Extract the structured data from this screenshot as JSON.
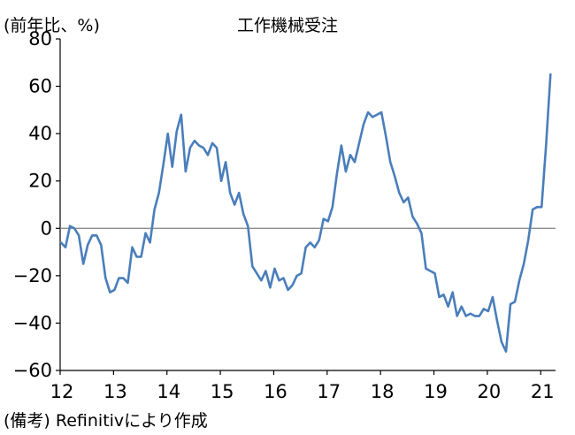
{
  "chart_data": {
    "type": "line",
    "title": "工作機械受注",
    "unit_label": "(前年比、%)",
    "source": "(備考) Refinitivにより作成",
    "ylim": [
      -60,
      80
    ],
    "yticks": [
      80,
      60,
      40,
      20,
      0,
      -20,
      -40,
      -60
    ],
    "ytick_labels": [
      "80",
      "60",
      "40",
      "20",
      "0",
      "−20",
      "−40",
      "−60"
    ],
    "xtick_labels": [
      "12",
      "13",
      "14",
      "15",
      "16",
      "17",
      "18",
      "19",
      "20",
      "21"
    ],
    "x_start": "2012-01",
    "x_end": "2021-03",
    "grid": false,
    "zero_line": true,
    "line_color": "#4a7ebb",
    "series": [
      {
        "values": [
          -6,
          -8,
          1,
          0,
          -3,
          -15,
          -7,
          -3,
          -3,
          -7,
          -21,
          -27,
          -26,
          -21,
          -21,
          -23,
          -8,
          -12,
          -12,
          -2,
          -6,
          8,
          15,
          27,
          40,
          26,
          41,
          48,
          24,
          34,
          37,
          35,
          34,
          31,
          36,
          34,
          20,
          28,
          15,
          10,
          15,
          6,
          1,
          -16,
          -19,
          -22,
          -18,
          -25,
          -17,
          -22,
          -21,
          -26,
          -24,
          -20,
          -19,
          -8,
          -6,
          -8,
          -5,
          4,
          3,
          9,
          23,
          35,
          24,
          31,
          28,
          36,
          44,
          49,
          47,
          48,
          49,
          39,
          28,
          22,
          15,
          11,
          13,
          5,
          2,
          -2,
          -17,
          -18,
          -19,
          -29,
          -28,
          -33,
          -27,
          -37,
          -33,
          -37,
          -36,
          -37,
          -37,
          -34,
          -35,
          -29,
          -39,
          -48,
          -52,
          -32,
          -31,
          -22,
          -15,
          -5,
          8,
          9,
          9,
          35,
          65
        ]
      }
    ]
  }
}
